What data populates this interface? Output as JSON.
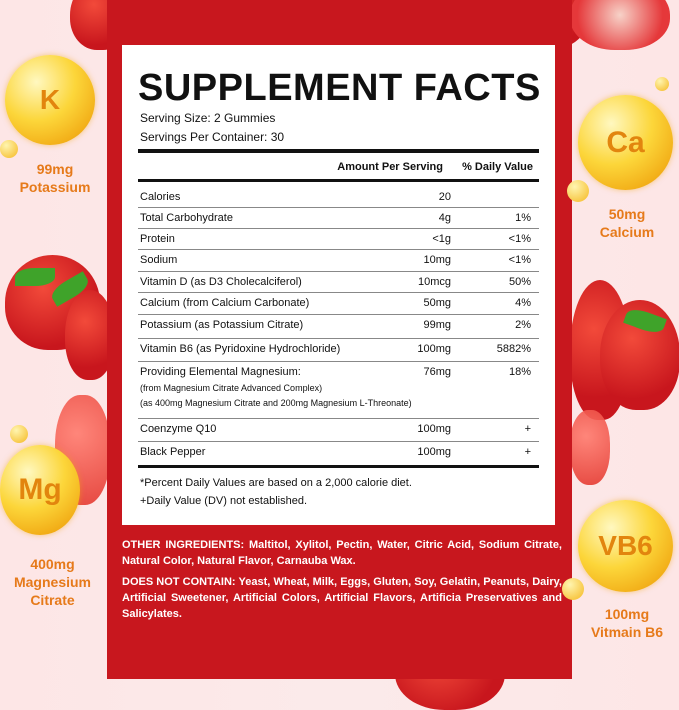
{
  "label": {
    "title": "SUPPLEMENT FACTS",
    "serving_size": "Serving Size: 2 Gummies",
    "servings_per_container": "Servings Per Container: 30",
    "col_amount": "Amount Per Serving",
    "col_dv": "% Daily Value",
    "rows": [
      {
        "name": "Calories",
        "amount": "20",
        "dv": ""
      },
      {
        "name": "Total Carbohydrate",
        "amount": "4g",
        "dv": "1%"
      },
      {
        "name": "Protein",
        "amount": "<1g",
        "dv": "<1%"
      },
      {
        "name": "Sodium",
        "amount": "10mg",
        "dv": "<1%"
      },
      {
        "name": "Vitamin D (as D3 Cholecalciferol)",
        "amount": "10mcg",
        "dv": "50%"
      },
      {
        "name": "Calcium (from Calcium Carbonate)",
        "amount": "50mg",
        "dv": "4%"
      },
      {
        "name": "Potassium (as Potassium Citrate)",
        "amount": "99mg",
        "dv": "2%"
      },
      {
        "name": "Vitamin B6 (as Pyridoxine Hydrochloride)",
        "amount": "100mg",
        "dv": "5882%"
      },
      {
        "name": "Providing Elemental Magnesium:",
        "sub1": "(from Magnesium Citrate Advanced Complex)",
        "sub2": "(as 400mg Magnesium Citrate and 200mg Magnesium L-Threonate)",
        "amount": "76mg",
        "dv": "18%"
      },
      {
        "name": "Coenzyme Q10",
        "amount": "100mg",
        "dv": "+"
      },
      {
        "name": "Black Pepper",
        "amount": "100mg",
        "dv": "+"
      }
    ],
    "footnote1": "*Percent Daily Values are based on a 2,000 calorie diet.",
    "footnote2": "+Daily Value (DV) not established."
  },
  "other_ingredients": {
    "label": "OTHER INGREDIENTS:",
    "text": " Maltitol, Xylitol, Pectin, Water, Citric Acid, Sodium Citrate, Natural Color, Natural Flavor, Carnauba Wax."
  },
  "does_not_contain": {
    "label": "DOES NOT CONTAIN:",
    "text": " Yeast, Wheat, Milk, Eggs, Gluten, Soy, Gelatin, Peanuts, Dairy, Artificial Sweetener, Artificial Colors, Artificial Flavors, Artificia Preservatives and Salicylates."
  },
  "badges": [
    {
      "symbol": "K",
      "amount": "99mg",
      "name": "Potassium"
    },
    {
      "symbol": "Ca",
      "amount": "50mg",
      "name": "Calcium"
    },
    {
      "symbol": "Mg",
      "amount": "400mg",
      "name": "Magnesium Citrate"
    },
    {
      "symbol": "VB6",
      "amount": "100mg",
      "name": "Vitmain B6"
    }
  ],
  "colors": {
    "panel": "#c8171e",
    "badge": "#fcd63a",
    "badge_text": "#e67a1a"
  }
}
